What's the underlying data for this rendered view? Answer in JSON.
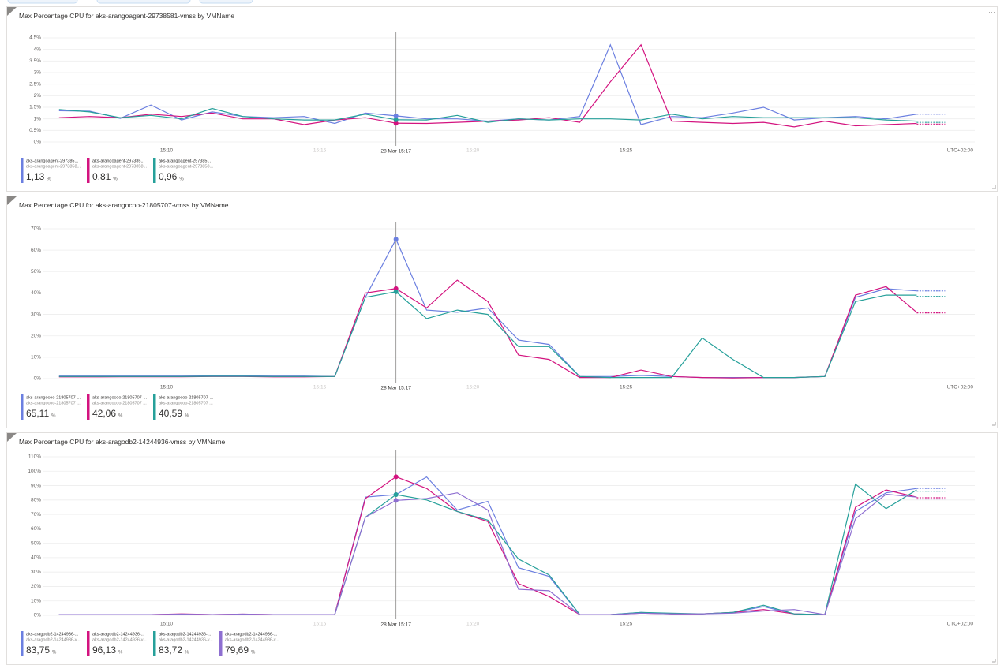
{
  "chart_data": [
    {
      "type": "line",
      "title": "Max Percentage CPU for aks-arangoagent-29738581-vmss by VMName",
      "x": [
        "15:06",
        "15:07",
        "15:08",
        "15:09",
        "15:10",
        "15:11",
        "15:12",
        "15:13",
        "15:14",
        "15:15",
        "15:16",
        "15:17",
        "15:18",
        "15:19",
        "15:20",
        "15:21",
        "15:22",
        "15:23",
        "15:24",
        "15:25",
        "15:26",
        "15:27",
        "15:28",
        "15:29",
        "15:30",
        "15:31",
        "15:32",
        "15:33",
        "15:34"
      ],
      "xlim": [
        "15:05",
        "15:36"
      ],
      "xticks": [
        "15:10",
        "15:15",
        "15:20",
        "15:25"
      ],
      "cursor": "28 Mar 15:17",
      "timezone": "UTC+02:00",
      "ylim": [
        0,
        4.5
      ],
      "yticks": [
        {
          "value": 0,
          "label": "0%"
        },
        {
          "value": 0.5,
          "label": "0.5%"
        },
        {
          "value": 1,
          "label": "1%"
        },
        {
          "value": 1.5,
          "label": "1.5%"
        },
        {
          "value": 2,
          "label": "2%"
        },
        {
          "value": 2.5,
          "label": "2.5%"
        },
        {
          "value": 3,
          "label": "3%"
        },
        {
          "value": 3.5,
          "label": "3.5%"
        },
        {
          "value": 4,
          "label": "4%"
        },
        {
          "value": 4.5,
          "label": "4.5%"
        }
      ],
      "grid": true,
      "unit": "%",
      "series": [
        {
          "name": "aks-arangoagent-297385...",
          "subname": "aks-arangoagent-2973858...",
          "color": "#6b7fe0",
          "cursor_label": "1,13",
          "values": [
            1.35,
            1.33,
            1.02,
            1.6,
            0.95,
            1.3,
            1.1,
            1.05,
            1.1,
            0.8,
            1.25,
            1.13,
            1.0,
            1.0,
            0.9,
            1.0,
            0.95,
            1.1,
            4.2,
            0.75,
            1.1,
            1.05,
            1.25,
            1.5,
            0.95,
            1.05,
            1.1,
            1.0,
            1.2
          ]
        },
        {
          "name": "aks-arangoagent-297385...",
          "subname": "aks-arangoagent-2973858...",
          "color": "#d3137f",
          "cursor_label": "0,81",
          "values": [
            1.05,
            1.1,
            1.05,
            1.2,
            1.1,
            1.25,
            1.0,
            1.0,
            0.75,
            0.95,
            1.05,
            0.81,
            0.8,
            0.85,
            0.9,
            0.95,
            1.05,
            0.85,
            2.6,
            4.2,
            0.9,
            0.85,
            0.8,
            0.85,
            0.65,
            0.9,
            0.7,
            0.75,
            0.8
          ]
        },
        {
          "name": "aks-arangoagent-297385...",
          "subname": "aks-arangoagent-2973858...",
          "color": "#26a09a",
          "cursor_label": "0,96",
          "values": [
            1.4,
            1.3,
            1.05,
            1.15,
            1.0,
            1.45,
            1.1,
            1.0,
            0.95,
            0.95,
            1.2,
            0.96,
            0.95,
            1.15,
            0.85,
            1.0,
            0.95,
            1.0,
            1.0,
            0.95,
            1.2,
            1.0,
            1.1,
            1.05,
            1.05,
            1.05,
            1.05,
            0.95,
            0.9
          ]
        }
      ]
    },
    {
      "type": "line",
      "title": "Max Percentage CPU for aks-arangocoo-21805707-vmss by VMName",
      "x": [
        "15:06",
        "15:07",
        "15:08",
        "15:09",
        "15:10",
        "15:11",
        "15:12",
        "15:13",
        "15:14",
        "15:15",
        "15:16",
        "15:17",
        "15:18",
        "15:19",
        "15:20",
        "15:21",
        "15:22",
        "15:23",
        "15:24",
        "15:25",
        "15:26",
        "15:27",
        "15:28",
        "15:29",
        "15:30",
        "15:31",
        "15:32",
        "15:33",
        "15:34"
      ],
      "xlim": [
        "15:05",
        "15:36"
      ],
      "xticks": [
        "15:10",
        "15:15",
        "15:20",
        "15:25"
      ],
      "cursor": "28 Mar 15:17",
      "timezone": "UTC+02:00",
      "ylim": [
        0,
        70
      ],
      "yticks": [
        {
          "value": 0,
          "label": "0%"
        },
        {
          "value": 10,
          "label": "10%"
        },
        {
          "value": 20,
          "label": "20%"
        },
        {
          "value": 30,
          "label": "30%"
        },
        {
          "value": 40,
          "label": "40%"
        },
        {
          "value": 50,
          "label": "50%"
        },
        {
          "value": 60,
          "label": "60%"
        },
        {
          "value": 70,
          "label": "70%"
        }
      ],
      "grid": true,
      "unit": "%",
      "series": [
        {
          "name": "aks-arangocoo-21805707-...",
          "subname": "aks-arangocoo-21805707 ...",
          "color": "#6b7fe0",
          "cursor_label": "65,11",
          "values": [
            1.2,
            1.2,
            1.2,
            1.2,
            1.2,
            1.3,
            1.3,
            1.2,
            1.2,
            1,
            38,
            65.11,
            32,
            31,
            33,
            18,
            16,
            1,
            1,
            1.5,
            1,
            0.5,
            0.5,
            0.5,
            0.5,
            1,
            38,
            42,
            41
          ]
        },
        {
          "name": "aks-arangocoo-21805707-...",
          "subname": "aks-arangocoo-21805707 ...",
          "color": "#d3137f",
          "cursor_label": "42,06",
          "values": [
            0.8,
            0.8,
            0.9,
            0.9,
            0.9,
            1.0,
            1.0,
            0.8,
            0.8,
            1,
            40,
            42.06,
            33,
            46,
            36,
            11,
            9,
            0.5,
            0.5,
            4,
            1,
            0.5,
            0.3,
            0.5,
            0.5,
            1,
            39,
            43,
            31
          ]
        },
        {
          "name": "aks-arangocoo-21805707-...",
          "subname": "aks-arangocoo-21805707 ...",
          "color": "#26a09a",
          "cursor_label": "40,59",
          "values": [
            1,
            1,
            1,
            1,
            1,
            1.1,
            1.1,
            1,
            1,
            1,
            38,
            40.59,
            28,
            32,
            30,
            15,
            15,
            1,
            0.5,
            0.5,
            0.5,
            19,
            9,
            0.5,
            0.5,
            1,
            36,
            39,
            39
          ]
        }
      ]
    },
    {
      "type": "line",
      "title": "Max Percentage CPU for aks-aragodb2-14244936-vmss by VMName",
      "x": [
        "15:06",
        "15:07",
        "15:08",
        "15:09",
        "15:10",
        "15:11",
        "15:12",
        "15:13",
        "15:14",
        "15:15",
        "15:16",
        "15:17",
        "15:18",
        "15:19",
        "15:20",
        "15:21",
        "15:22",
        "15:23",
        "15:24",
        "15:25",
        "15:26",
        "15:27",
        "15:28",
        "15:29",
        "15:30",
        "15:31",
        "15:32",
        "15:33",
        "15:34"
      ],
      "xlim": [
        "15:05",
        "15:36"
      ],
      "xticks": [
        "15:10",
        "15:15",
        "15:20",
        "15:25"
      ],
      "cursor": "28 Mar 15:17",
      "timezone": "UTC+02:00",
      "ylim": [
        0,
        110
      ],
      "yticks": [
        {
          "value": 0,
          "label": "0%"
        },
        {
          "value": 10,
          "label": "10%"
        },
        {
          "value": 20,
          "label": "20%"
        },
        {
          "value": 30,
          "label": "30%"
        },
        {
          "value": 40,
          "label": "40%"
        },
        {
          "value": 50,
          "label": "50%"
        },
        {
          "value": 60,
          "label": "60%"
        },
        {
          "value": 70,
          "label": "70%"
        },
        {
          "value": 80,
          "label": "80%"
        },
        {
          "value": 90,
          "label": "90%"
        },
        {
          "value": 100,
          "label": "100%"
        },
        {
          "value": 110,
          "label": "110%"
        }
      ],
      "grid": true,
      "unit": "%",
      "series": [
        {
          "name": "aks-aragodb2-14244936-...",
          "subname": "aks-aragodb2-14244936-v...",
          "color": "#6b7fe0",
          "cursor_label": "83,75",
          "values": [
            0.5,
            0.5,
            0.5,
            0.5,
            0.5,
            0.5,
            0.5,
            0.5,
            0.5,
            0.5,
            82,
            83.75,
            96,
            73,
            79,
            33,
            27,
            0.5,
            0.5,
            2,
            1,
            1,
            2,
            6,
            1,
            0.5,
            72,
            85,
            88
          ]
        },
        {
          "name": "aks-aragodb2-14244936-...",
          "subname": "aks-aragodb2-14244936-v...",
          "color": "#d3137f",
          "cursor_label": "96,13",
          "values": [
            0.5,
            0.5,
            0.5,
            0.5,
            1,
            0.5,
            0.8,
            0.5,
            0.5,
            0.5,
            81,
            96.13,
            88,
            72,
            65,
            22,
            13,
            0.5,
            0.5,
            1.5,
            1,
            1,
            2,
            4,
            1,
            0.5,
            75,
            87,
            82
          ]
        },
        {
          "name": "aks-aragodb2-14244936-...",
          "subname": "aks-aragodb2-14244936-v...",
          "color": "#26a09a",
          "cursor_label": "83,72",
          "values": [
            0.5,
            0.5,
            0.5,
            0.5,
            0.5,
            0.5,
            0.5,
            0.5,
            0.5,
            0.5,
            68,
            83.72,
            80,
            72,
            66,
            39,
            28,
            0.5,
            0.5,
            2,
            1.5,
            1,
            2,
            7,
            1,
            0.5,
            91,
            74,
            87
          ]
        },
        {
          "name": "aks-aragodb2-14244936-...",
          "subname": "aks-aragodb2-14244936-v...",
          "color": "#8e6fd1",
          "cursor_label": "79,69",
          "values": [
            0.5,
            0.5,
            0.5,
            0.5,
            0.8,
            0.5,
            0.8,
            0.5,
            0.5,
            0.5,
            68,
            79.69,
            81,
            85,
            73,
            18,
            17,
            0.5,
            0.5,
            1.5,
            1,
            1,
            1.5,
            3,
            4,
            0.5,
            67,
            84,
            82
          ]
        }
      ]
    }
  ]
}
